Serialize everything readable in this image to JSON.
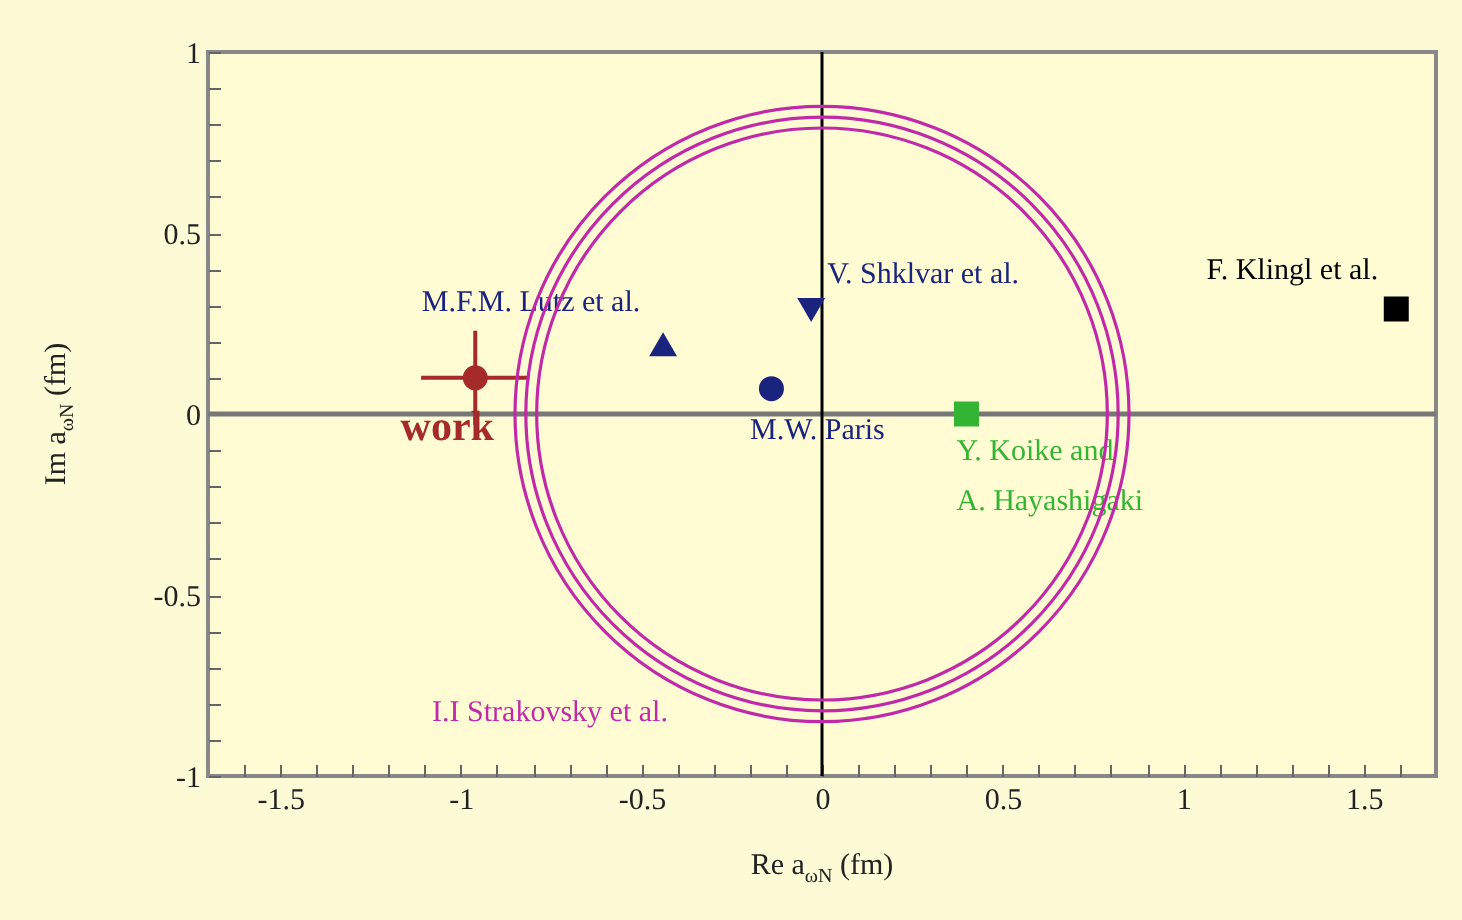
{
  "chart_data": {
    "type": "scatter",
    "xlabel": "Re a$_{ωN}$ (fm)",
    "ylabel": "Im a$_{ωN}$ (fm)",
    "xlim": [
      -1.7,
      1.7
    ],
    "ylim": [
      -1,
      1
    ],
    "xticks": [
      {
        "value": -1.6,
        "label": null
      },
      -1.5,
      {
        "value": -1.4,
        "label": null
      },
      {
        "value": -1.3,
        "label": null
      },
      {
        "value": -1.2,
        "label": null
      },
      {
        "value": -1.1,
        "label": null
      },
      -1,
      {
        "value": -0.9,
        "label": null
      },
      {
        "value": -0.8,
        "label": null
      },
      {
        "value": -0.7,
        "label": null
      },
      {
        "value": -0.6,
        "label": null
      },
      -0.5,
      {
        "value": -0.4,
        "label": null
      },
      {
        "value": -0.3,
        "label": null
      },
      {
        "value": -0.2,
        "label": null
      },
      {
        "value": -0.1,
        "label": null
      },
      0,
      {
        "value": 0.1,
        "label": null
      },
      {
        "value": 0.2,
        "label": null
      },
      {
        "value": 0.3,
        "label": null
      },
      {
        "value": 0.4,
        "label": null
      },
      0.5,
      {
        "value": 0.6,
        "label": null
      },
      {
        "value": 0.7,
        "label": null
      },
      {
        "value": 0.8,
        "label": null
      },
      {
        "value": 0.9,
        "label": null
      },
      1,
      {
        "value": 1.1,
        "label": null
      },
      {
        "value": 1.2,
        "label": null
      },
      {
        "value": 1.3,
        "label": null
      },
      {
        "value": 1.4,
        "label": null
      },
      1.5,
      {
        "value": 1.6,
        "label": null
      }
    ],
    "yticks": [
      -1,
      {
        "value": -0.9,
        "label": null
      },
      {
        "value": -0.8,
        "label": null
      },
      {
        "value": -0.7,
        "label": null
      },
      {
        "value": -0.6,
        "label": null
      },
      -0.5,
      {
        "value": -0.4,
        "label": null
      },
      {
        "value": -0.3,
        "label": null
      },
      {
        "value": -0.2,
        "label": null
      },
      {
        "value": -0.1,
        "label": null
      },
      0,
      {
        "value": 0.1,
        "label": null
      },
      {
        "value": 0.2,
        "label": null
      },
      {
        "value": 0.3,
        "label": null
      },
      {
        "value": 0.4,
        "label": null
      },
      0.5,
      {
        "value": 0.6,
        "label": null
      },
      {
        "value": 0.7,
        "label": null
      },
      {
        "value": 0.8,
        "label": null
      },
      {
        "value": 0.9,
        "label": null
      },
      1
    ],
    "ref_lines": [
      {
        "axis": "x",
        "value": 0,
        "color": "#000000"
      },
      {
        "axis": "y",
        "value": 0,
        "color": "#777777"
      }
    ],
    "series": [
      {
        "name": "work",
        "color": "#a52a2a",
        "marker": "circle",
        "x": [
          -0.96
        ],
        "values": [
          0.1
        ],
        "errors": [
          0.13
        ],
        "xerrors": [
          0.15
        ]
      },
      {
        "name": "M.F.M. Lutz et al.",
        "color": "#1a237e",
        "marker": "triangle",
        "x": [
          -0.44
        ],
        "values": [
          0.19
        ]
      },
      {
        "name": "V. Shklvar et al.",
        "color": "#1a237e",
        "marker": "triangle-down",
        "x": [
          -0.03
        ],
        "values": [
          0.29
        ]
      },
      {
        "name": "M.W. Paris",
        "color": "#1a237e",
        "marker": "circle",
        "x": [
          -0.14
        ],
        "values": [
          0.07
        ]
      },
      {
        "name": "Y. Koike and\nA. Hayashigaki",
        "color": "#33b533",
        "marker": "square",
        "x": [
          0.4
        ],
        "values": [
          0.0
        ]
      },
      {
        "name": "F. Klingl et al.",
        "color": "#000000",
        "marker": "square",
        "x": [
          1.59
        ],
        "values": [
          0.29
        ]
      }
    ],
    "annotations": [
      "I.I Strakovsky et al."
    ]
  }
}
